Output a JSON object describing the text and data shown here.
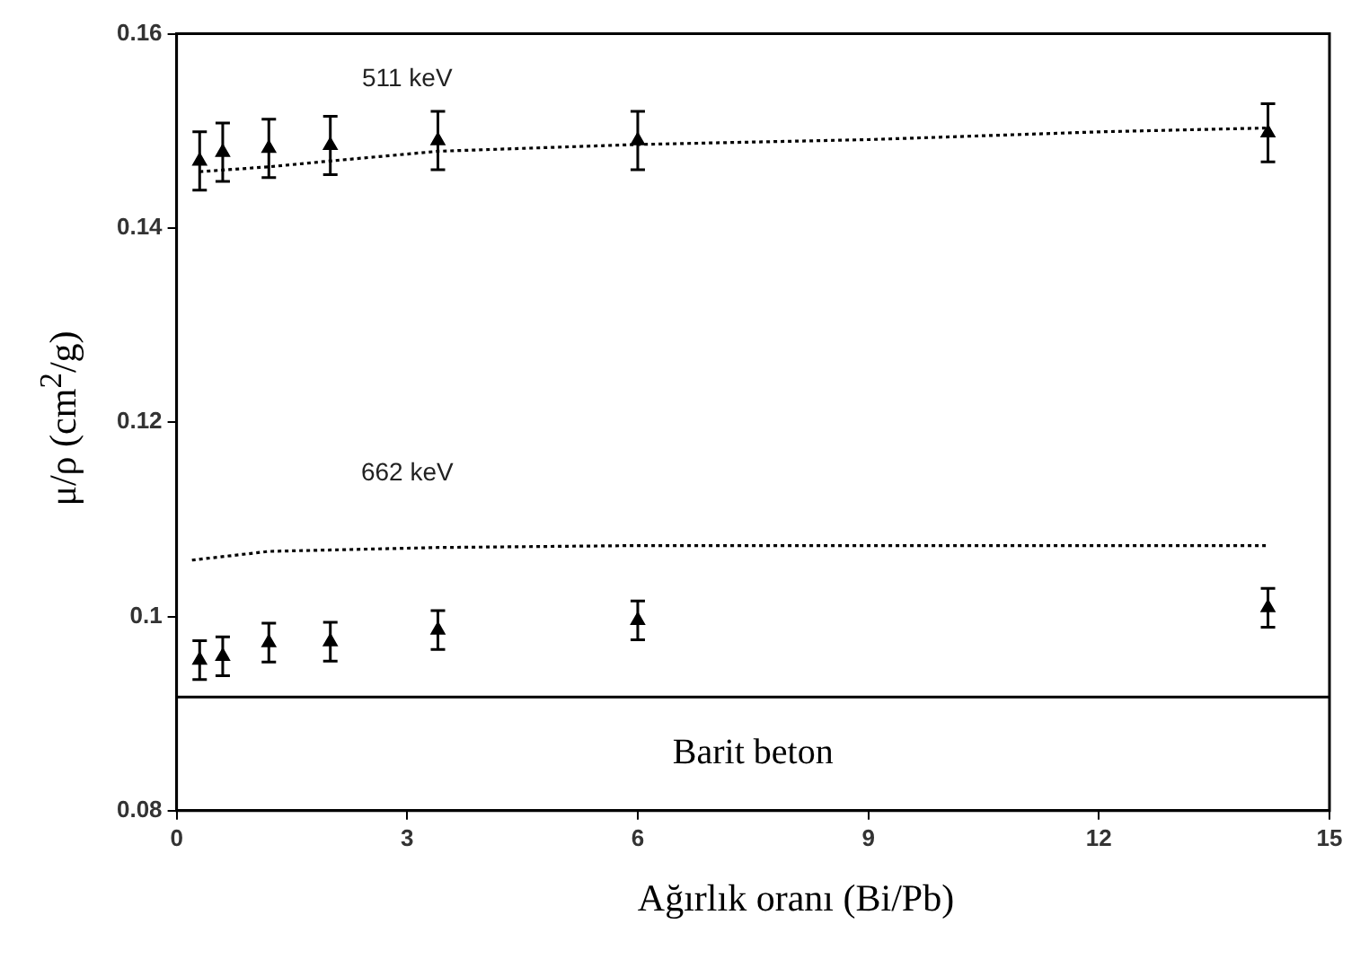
{
  "chart_data": {
    "type": "scatter",
    "xlabel": "Ağırlık oranı (Bi/Pb)",
    "ylabel": "μ/ρ (cm$^{2}$/g)",
    "xlim": [
      0,
      15
    ],
    "xticks": [
      0,
      3,
      6,
      9,
      12,
      15
    ],
    "ylim": [
      0.08,
      0.16
    ],
    "yticks": [
      0.08,
      0.1,
      0.12,
      0.14,
      0.16
    ],
    "marker": "triangle",
    "series": [
      {
        "type": "scatter",
        "color": "#000000",
        "x": [
          0.3,
          0.6,
          1.2,
          2,
          3.4,
          6,
          14.2
        ],
        "values": [
          0.1469,
          0.1478,
          0.1482,
          0.1485,
          0.149,
          0.149,
          0.1498
        ],
        "errors": [
          0.003,
          0.003,
          0.003,
          0.003,
          0.003,
          0.003,
          0.003
        ]
      },
      {
        "type": "scatter",
        "color": "#000000",
        "x": [
          0.3,
          0.6,
          1.2,
          2,
          3.4,
          6,
          14.2
        ],
        "values": [
          0.0955,
          0.0959,
          0.0973,
          0.0974,
          0.0986,
          0.0996,
          0.1009
        ],
        "errors": [
          0.002,
          0.002,
          0.002,
          0.002,
          0.002,
          0.002,
          0.002
        ]
      },
      {
        "type": "line",
        "color": "#000000",
        "line_style": "dotted",
        "marker": "none",
        "x": [
          0.3,
          1.2,
          2,
          3.4,
          6,
          9,
          12,
          14.2
        ],
        "values": [
          0.1458,
          0.1463,
          0.1469,
          0.1479,
          0.1486,
          0.1491,
          0.1499,
          0.1503
        ]
      },
      {
        "type": "line",
        "color": "#000000",
        "line_style": "dotted",
        "marker": "none",
        "x": [
          0.2,
          1.2,
          3.4,
          6,
          14.2
        ],
        "values": [
          0.1058,
          0.1067,
          0.1071,
          0.1073,
          0.1073
        ]
      }
    ],
    "annotations": [
      "511 keV",
      "662 keV"
    ],
    "ref_lines": [
      {
        "axis": "y",
        "value": 0.0917,
        "label": "Barit beton",
        "color": "#000000"
      }
    ]
  }
}
